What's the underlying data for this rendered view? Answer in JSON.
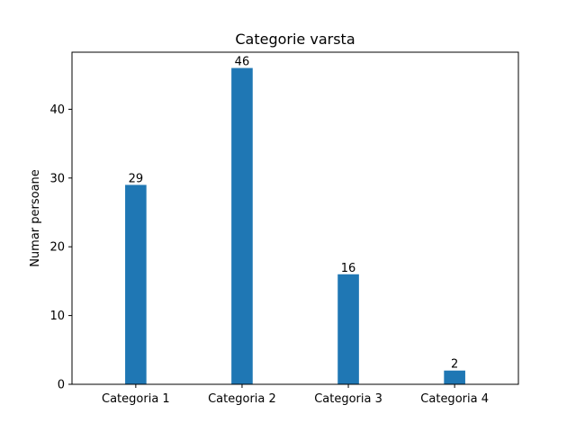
{
  "chart_data": {
    "type": "bar",
    "title": "Categorie varsta",
    "xlabel": "",
    "ylabel": "Numar persoane",
    "categories": [
      "Categoria 1",
      "Categoria 2",
      "Categoria 3",
      "Categoria 4"
    ],
    "values": [
      29,
      46,
      16,
      2
    ],
    "data_labels": [
      "29",
      "46",
      "16",
      "2"
    ],
    "yticks": [
      0,
      10,
      20,
      30,
      40
    ],
    "ytick_labels": [
      "0",
      "10",
      "20",
      "30",
      "40"
    ],
    "ylim": [
      0,
      48.3
    ],
    "bar_color": "#1f77b4",
    "grid": false,
    "legend": "none"
  }
}
